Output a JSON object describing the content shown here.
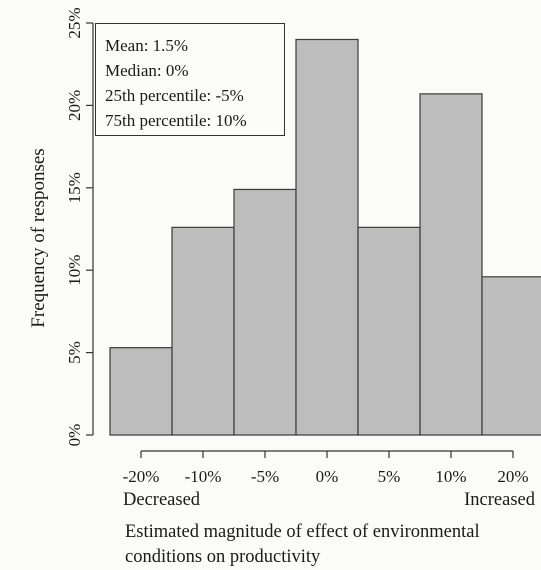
{
  "chart_data": {
    "type": "bar",
    "categories": [
      "-20%",
      "-10%",
      "-5%",
      "0%",
      "5%",
      "10%",
      "20%"
    ],
    "values": [
      5.3,
      12.6,
      14.9,
      24.0,
      12.6,
      20.7,
      9.6
    ],
    "ylabel": "Frequency of responses",
    "xlabel": "Estimated magnitude of effect of environmental conditions on productivity",
    "yticks": [
      "0%",
      "5%",
      "10%",
      "15%",
      "20%",
      "25%"
    ],
    "ylim": [
      0,
      25
    ],
    "x_end_labels": {
      "left": "Decreased",
      "right": "Increased"
    },
    "bar_color": "#bdbdbd",
    "bar_edge_color": "#3a3a3a",
    "annotations": [
      "Mean: 1.5%",
      "Median: 0%",
      "25th percentile: -5%",
      "75th percentile: 10%"
    ],
    "grid": false,
    "legend": "none"
  }
}
